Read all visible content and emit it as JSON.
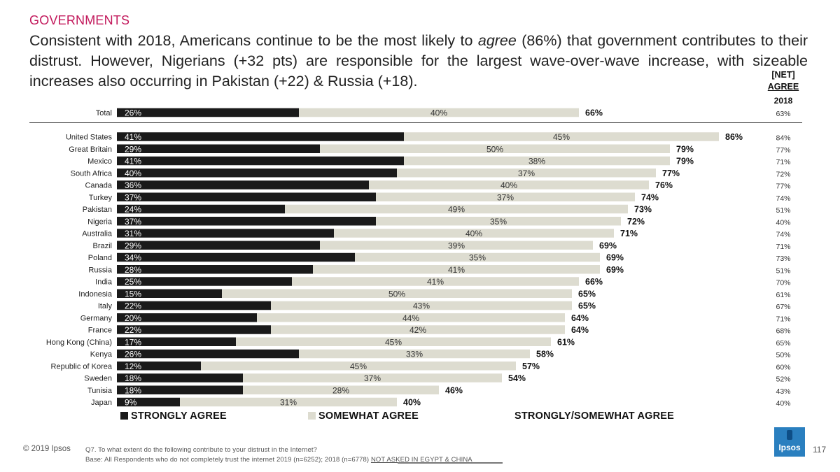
{
  "section": "GOVERNMENTS",
  "headline": {
    "before": "Consistent with 2018, Americans continue to be the most likely to ",
    "em": "agree",
    "after": " (86%) that government contributes to their distrust. However, Nigerians (+32 pts) are responsible for the largest wave-over-wave increase, with sizeable increases also occurring in Pakistan (+22) & Russia (+18)."
  },
  "net_header": {
    "line1": "[NET]",
    "line2": "AGREE",
    "year": "2018"
  },
  "legend": {
    "strongly": "STRONGLY AGREE",
    "somewhat": "SOMEWHAT AGREE",
    "total": "STRONGLY/SOMEWHAT AGREE"
  },
  "colors": {
    "strong": "#1a1a1a",
    "somewhat": "#dddcd0",
    "accent": "#c2185b"
  },
  "chart_data": {
    "type": "bar",
    "orientation": "horizontal",
    "stacked": true,
    "xlim": [
      0,
      100
    ],
    "categories": [
      "Total",
      "United States",
      "Great Britain",
      "Mexico",
      "South Africa",
      "Canada",
      "Turkey",
      "Pakistan",
      "Nigeria",
      "Australia",
      "Brazil",
      "Poland",
      "Russia",
      "India",
      "Indonesia",
      "Italy",
      "Germany",
      "France",
      "Hong Kong (China)",
      "Kenya",
      "Republic of Korea",
      "Sweden",
      "Tunisia",
      "Japan"
    ],
    "series": [
      {
        "name": "STRONGLY AGREE",
        "values": [
          26,
          41,
          29,
          41,
          40,
          36,
          37,
          24,
          37,
          31,
          29,
          34,
          28,
          25,
          15,
          22,
          20,
          22,
          17,
          26,
          12,
          18,
          18,
          9
        ]
      },
      {
        "name": "SOMEWHAT AGREE",
        "values": [
          40,
          45,
          50,
          38,
          37,
          40,
          37,
          49,
          35,
          40,
          39,
          35,
          41,
          41,
          50,
          43,
          44,
          42,
          45,
          33,
          45,
          37,
          28,
          31
        ]
      }
    ],
    "totals": [
      66,
      86,
      79,
      79,
      77,
      76,
      74,
      73,
      72,
      71,
      69,
      69,
      69,
      66,
      65,
      65,
      64,
      64,
      61,
      58,
      57,
      54,
      46,
      40
    ],
    "net_2018": [
      63,
      84,
      77,
      71,
      72,
      77,
      74,
      51,
      40,
      74,
      71,
      73,
      51,
      70,
      61,
      67,
      71,
      68,
      65,
      50,
      60,
      52,
      43,
      40
    ]
  },
  "footer": {
    "copyright": "© 2019 Ipsos",
    "question": "Q7.  To what extent do the following contribute to your distrust in the Internet?",
    "base": "Base: All Respondents who do not completely trust the internet 2019 (n=6252); 2018 (n=6778) ",
    "not_asked": "NOT ASKED IN EGYPT & CHINA",
    "logo": "Ipsos",
    "page": "117"
  }
}
